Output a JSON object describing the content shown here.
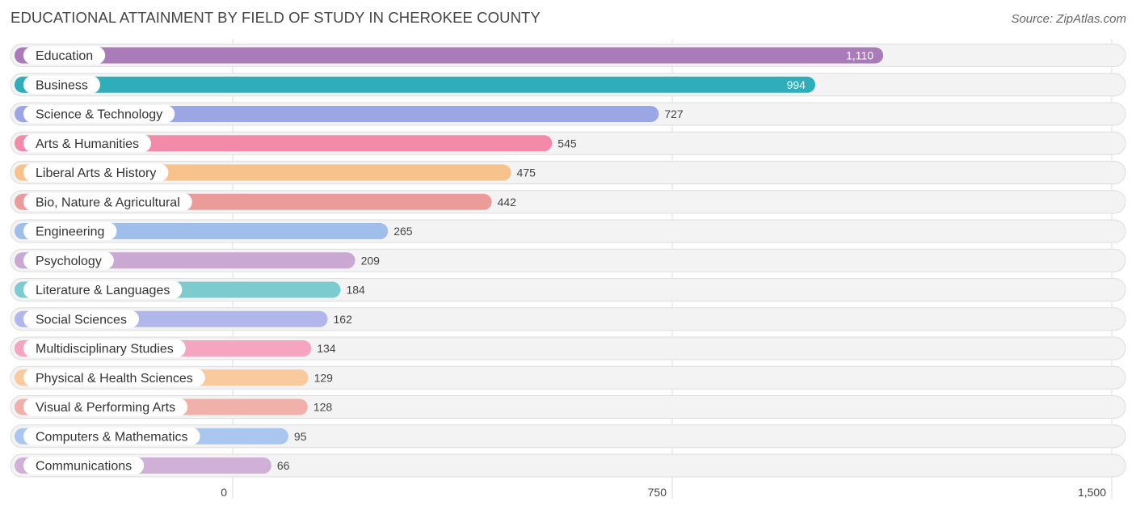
{
  "header": {
    "title": "EDUCATIONAL ATTAINMENT BY FIELD OF STUDY IN CHEROKEE COUNTY",
    "source": "Source: ZipAtlas.com"
  },
  "chart_data": {
    "type": "bar",
    "orientation": "horizontal",
    "title": "EDUCATIONAL ATTAINMENT BY FIELD OF STUDY IN CHEROKEE COUNTY",
    "xlabel": "",
    "ylabel": "",
    "xlim": [
      0,
      1500
    ],
    "xticks": [
      0,
      750,
      1500
    ],
    "xtick_labels": [
      "0",
      "750",
      "1,500"
    ],
    "grid": true,
    "categories": [
      "Education",
      "Business",
      "Science & Technology",
      "Arts & Humanities",
      "Liberal Arts & History",
      "Bio, Nature & Agricultural",
      "Engineering",
      "Psychology",
      "Literature & Languages",
      "Social Sciences",
      "Multidisciplinary Studies",
      "Physical & Health Sciences",
      "Visual & Performing Arts",
      "Computers & Mathematics",
      "Communications"
    ],
    "values": [
      1110,
      994,
      727,
      545,
      475,
      442,
      265,
      209,
      184,
      162,
      134,
      129,
      128,
      95,
      66
    ],
    "value_labels": [
      "1,110",
      "994",
      "727",
      "545",
      "475",
      "442",
      "265",
      "209",
      "184",
      "162",
      "134",
      "129",
      "128",
      "95",
      "66"
    ],
    "colors": [
      "#a97bb8",
      "#2fadba",
      "#9ba7e4",
      "#f38aa9",
      "#f8c28c",
      "#eb9c9a",
      "#9fbfea",
      "#c9a8d2",
      "#7ccccf",
      "#b1b7ea",
      "#f5a5bf",
      "#f8ca9d",
      "#f1b1aa",
      "#a9c6ee",
      "#d0b0d6"
    ]
  }
}
